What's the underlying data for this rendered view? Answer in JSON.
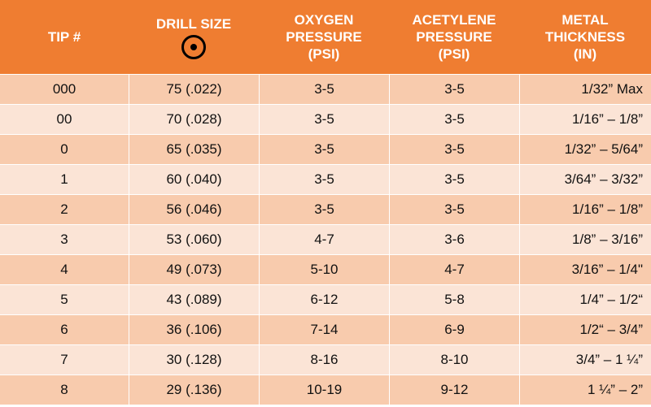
{
  "headers": {
    "tip": [
      "TIP #"
    ],
    "drill": [
      "DRILL SIZE"
    ],
    "oxygen": [
      "OXYGEN",
      "PRESSURE",
      "(PSI)"
    ],
    "acetylene": [
      "ACETYLENE",
      "PRESSURE",
      "(PSI)"
    ],
    "metal": [
      "METAL",
      "THICKNESS",
      "(IN)"
    ]
  },
  "rows": [
    {
      "tip": "000",
      "drill": "75 (.022)",
      "oxygen": "3-5",
      "acetylene": "3-5",
      "metal": "1/32” Max"
    },
    {
      "tip": "00",
      "drill": "70 (.028)",
      "oxygen": "3-5",
      "acetylene": "3-5",
      "metal": "1/16” – 1/8”"
    },
    {
      "tip": "0",
      "drill": "65 (.035)",
      "oxygen": "3-5",
      "acetylene": "3-5",
      "metal": "1/32” – 5/64”"
    },
    {
      "tip": "1",
      "drill": "60 (.040)",
      "oxygen": "3-5",
      "acetylene": "3-5",
      "metal": "3/64” – 3/32”"
    },
    {
      "tip": "2",
      "drill": "56 (.046)",
      "oxygen": "3-5",
      "acetylene": "3-5",
      "metal": "1/16” – 1/8”"
    },
    {
      "tip": "3",
      "drill": "53 (.060)",
      "oxygen": "4-7",
      "acetylene": "3-6",
      "metal": "1/8” – 3/16”"
    },
    {
      "tip": "4",
      "drill": "49 (.073)",
      "oxygen": "5-10",
      "acetylene": "4-7",
      "metal": "3/16” – 1/4\""
    },
    {
      "tip": "5",
      "drill": "43 (.089)",
      "oxygen": "6-12",
      "acetylene": "5-8",
      "metal": "1/4” – 1/2“"
    },
    {
      "tip": "6",
      "drill": "36 (.106)",
      "oxygen": "7-14",
      "acetylene": "6-9",
      "metal": "1/2“ – 3/4”"
    },
    {
      "tip": "7",
      "drill": "30 (.128)",
      "oxygen": "8-16",
      "acetylene": "8-10",
      "metal": "3/4” – 1 ¼”"
    },
    {
      "tip": "8",
      "drill": "29 (.136)",
      "oxygen": "10-19",
      "acetylene": "9-12",
      "metal": "1 ¼” – 2”"
    }
  ],
  "icons": {
    "drill_size_icon": "target-circle-icon"
  },
  "colors": {
    "header": "#ef7d31",
    "row_odd": "#f8cbad",
    "row_even": "#fbe4d6"
  }
}
